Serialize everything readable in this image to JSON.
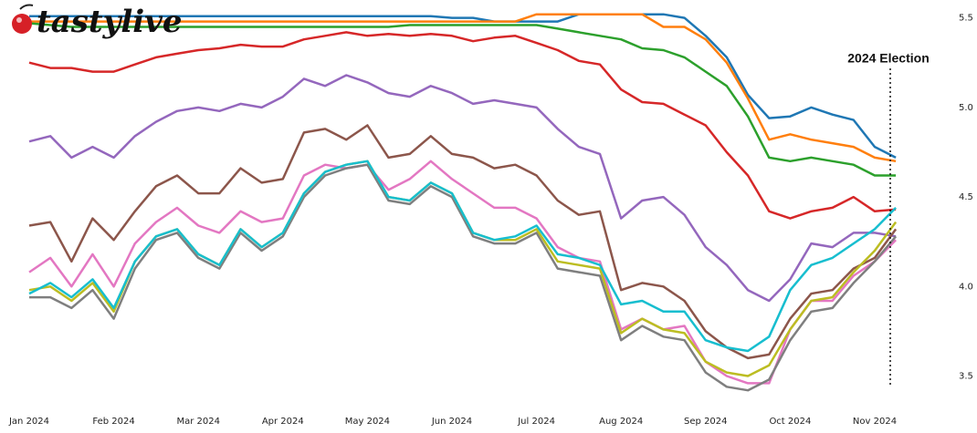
{
  "logo": "tastylive",
  "chart_data": {
    "type": "line",
    "annotation": "2024 Election",
    "categories": [
      "Jan 2024",
      null,
      null,
      null,
      "Feb 2024",
      null,
      null,
      null,
      "Mar 2024",
      null,
      null,
      null,
      "Apr 2024",
      null,
      null,
      null,
      "May 2024",
      null,
      null,
      null,
      "Jun 2024",
      null,
      null,
      null,
      "Jul 2024",
      null,
      null,
      null,
      "Aug 2024",
      null,
      null,
      null,
      "Sep 2024",
      null,
      null,
      null,
      "Oct 2024",
      null,
      null,
      null,
      "Nov 2024",
      null
    ],
    "ylim": [
      3.36,
      5.6
    ],
    "yticks": [
      3.5,
      {
        "value": 4.0,
        "label": "4.0"
      },
      4.5,
      {
        "value": 5.0,
        "label": "5.0"
      },
      5.5
    ],
    "series": [
      {
        "color": "#1f77b4",
        "values": [
          5.51,
          5.51,
          5.51,
          5.51,
          5.51,
          5.51,
          5.51,
          5.51,
          5.51,
          5.51,
          5.51,
          5.51,
          5.51,
          5.51,
          5.51,
          5.51,
          5.51,
          5.51,
          5.51,
          5.51,
          5.5,
          5.5,
          5.48,
          5.48,
          5.48,
          5.48,
          5.52,
          5.52,
          5.52,
          5.52,
          5.52,
          5.5,
          5.4,
          5.28,
          5.07,
          4.94,
          4.95,
          5.0,
          4.96,
          4.93,
          4.78,
          4.72
        ]
      },
      {
        "color": "#ff7f0e",
        "values": [
          5.48,
          5.48,
          5.48,
          5.48,
          5.48,
          5.48,
          5.48,
          5.48,
          5.48,
          5.48,
          5.48,
          5.48,
          5.48,
          5.48,
          5.48,
          5.48,
          5.48,
          5.48,
          5.48,
          5.48,
          5.48,
          5.48,
          5.48,
          5.48,
          5.52,
          5.52,
          5.52,
          5.52,
          5.52,
          5.52,
          5.45,
          5.45,
          5.38,
          5.25,
          5.05,
          4.82,
          4.85,
          4.82,
          4.8,
          4.78,
          4.72,
          4.7
        ]
      },
      {
        "color": "#2ca02c",
        "values": [
          5.47,
          5.46,
          5.45,
          5.45,
          5.45,
          5.45,
          5.45,
          5.45,
          5.45,
          5.45,
          5.45,
          5.45,
          5.45,
          5.45,
          5.45,
          5.45,
          5.45,
          5.45,
          5.46,
          5.46,
          5.46,
          5.46,
          5.46,
          5.46,
          5.46,
          5.44,
          5.42,
          5.4,
          5.38,
          5.33,
          5.32,
          5.28,
          5.2,
          5.12,
          4.95,
          4.72,
          4.7,
          4.72,
          4.7,
          4.68,
          4.62,
          4.62
        ]
      },
      {
        "color": "#d62728",
        "values": [
          5.25,
          5.22,
          5.22,
          5.2,
          5.2,
          5.24,
          5.28,
          5.3,
          5.32,
          5.33,
          5.35,
          5.34,
          5.34,
          5.38,
          5.4,
          5.42,
          5.4,
          5.41,
          5.4,
          5.41,
          5.4,
          5.37,
          5.39,
          5.4,
          5.36,
          5.32,
          5.26,
          5.24,
          5.1,
          5.03,
          5.02,
          4.96,
          4.9,
          4.75,
          4.62,
          4.42,
          4.38,
          4.42,
          4.44,
          4.5,
          4.42,
          4.43
        ]
      },
      {
        "color": "#9467bd",
        "values": [
          4.81,
          4.84,
          4.72,
          4.78,
          4.72,
          4.84,
          4.92,
          4.98,
          5.0,
          4.98,
          5.02,
          5.0,
          5.06,
          5.16,
          5.12,
          5.18,
          5.14,
          5.08,
          5.06,
          5.12,
          5.08,
          5.02,
          5.04,
          5.02,
          5.0,
          4.88,
          4.78,
          4.74,
          4.38,
          4.48,
          4.5,
          4.4,
          4.22,
          4.12,
          3.98,
          3.92,
          4.04,
          4.24,
          4.22,
          4.3,
          4.3,
          4.28
        ]
      },
      {
        "color": "#8c564b",
        "values": [
          4.34,
          4.36,
          4.14,
          4.38,
          4.26,
          4.42,
          4.56,
          4.62,
          4.52,
          4.52,
          4.66,
          4.58,
          4.6,
          4.86,
          4.88,
          4.82,
          4.9,
          4.72,
          4.74,
          4.84,
          4.74,
          4.72,
          4.66,
          4.68,
          4.62,
          4.48,
          4.4,
          4.42,
          3.98,
          4.02,
          4.0,
          3.92,
          3.75,
          3.66,
          3.6,
          3.62,
          3.82,
          3.96,
          3.98,
          4.1,
          4.16,
          4.32
        ]
      },
      {
        "color": "#e377c2",
        "values": [
          4.08,
          4.16,
          4.0,
          4.18,
          4.0,
          4.24,
          4.36,
          4.44,
          4.34,
          4.3,
          4.42,
          4.36,
          4.38,
          4.62,
          4.68,
          4.66,
          4.68,
          4.54,
          4.6,
          4.7,
          4.6,
          4.52,
          4.44,
          4.44,
          4.38,
          4.22,
          4.16,
          4.14,
          3.76,
          3.82,
          3.76,
          3.78,
          3.58,
          3.5,
          3.46,
          3.46,
          3.76,
          3.92,
          3.92,
          4.06,
          4.14,
          4.26
        ]
      },
      {
        "color": "#7f7f7f",
        "values": [
          3.94,
          3.94,
          3.88,
          3.98,
          3.82,
          4.1,
          4.26,
          4.3,
          4.16,
          4.1,
          4.3,
          4.2,
          4.28,
          4.5,
          4.62,
          4.66,
          4.68,
          4.48,
          4.46,
          4.56,
          4.5,
          4.28,
          4.24,
          4.24,
          4.3,
          4.1,
          4.08,
          4.06,
          3.7,
          3.78,
          3.72,
          3.7,
          3.52,
          3.44,
          3.42,
          3.48,
          3.7,
          3.86,
          3.88,
          4.02,
          4.14,
          4.28
        ]
      },
      {
        "color": "#bcbd22",
        "values": [
          3.98,
          4.0,
          3.92,
          4.02,
          3.86,
          4.14,
          4.28,
          4.32,
          4.18,
          4.12,
          4.32,
          4.22,
          4.3,
          4.52,
          4.64,
          4.68,
          4.7,
          4.5,
          4.48,
          4.58,
          4.52,
          4.3,
          4.26,
          4.26,
          4.32,
          4.14,
          4.12,
          4.1,
          3.74,
          3.82,
          3.76,
          3.74,
          3.58,
          3.52,
          3.5,
          3.56,
          3.76,
          3.92,
          3.94,
          4.08,
          4.2,
          4.36
        ]
      },
      {
        "color": "#17becf",
        "values": [
          3.96,
          4.02,
          3.94,
          4.04,
          3.88,
          4.14,
          4.28,
          4.32,
          4.18,
          4.12,
          4.32,
          4.22,
          4.3,
          4.52,
          4.64,
          4.68,
          4.7,
          4.5,
          4.48,
          4.58,
          4.52,
          4.3,
          4.26,
          4.28,
          4.34,
          4.18,
          4.16,
          4.12,
          3.9,
          3.92,
          3.86,
          3.86,
          3.7,
          3.66,
          3.64,
          3.72,
          3.98,
          4.12,
          4.16,
          4.24,
          4.32,
          4.44
        ]
      }
    ]
  }
}
